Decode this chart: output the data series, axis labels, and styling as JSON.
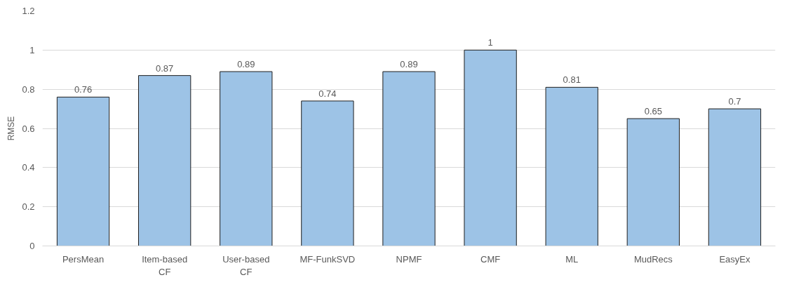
{
  "chart_data": {
    "type": "bar",
    "ylabel": "RMSE",
    "categories": [
      "PersMean",
      "Item-based CF",
      "User-based CF",
      "MF-FunkSVD",
      "NPMF",
      "CMF",
      "ML",
      "MudRecs",
      "EasyEx"
    ],
    "values": [
      0.76,
      0.87,
      0.89,
      0.74,
      0.89,
      1,
      0.81,
      0.65,
      0.7
    ],
    "color": "#9dc3e6",
    "ylim": [
      0,
      1.2
    ],
    "yticks": [
      0,
      0.2,
      0.4,
      0.6,
      0.8,
      1,
      1.2
    ],
    "grid": "y",
    "data_labels": true
  }
}
